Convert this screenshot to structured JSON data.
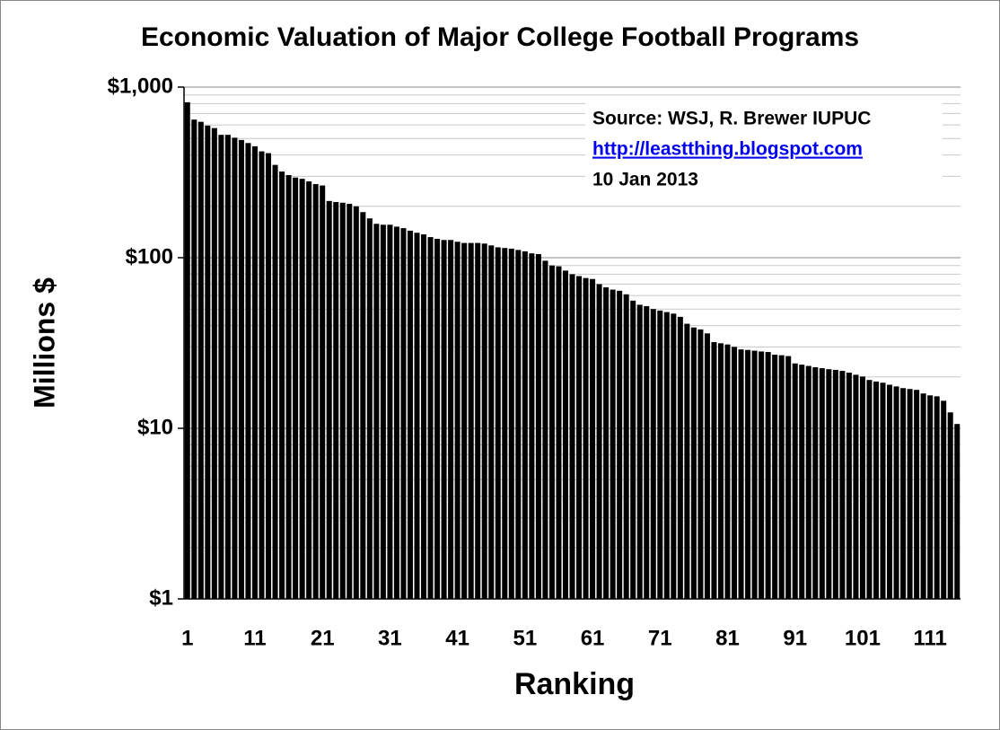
{
  "chart_data": {
    "type": "bar",
    "title": "Economic Valuation of Major College Football Programs",
    "xlabel": "Ranking",
    "ylabel": "Millions $",
    "annotations": [
      "Source: WSJ, R. Brewer IUPUC",
      "http://leastthing.blogspot.com",
      "10 Jan 2013"
    ],
    "categories": [
      1,
      null,
      null,
      null,
      null,
      null,
      null,
      null,
      null,
      null,
      11,
      null,
      null,
      null,
      null,
      null,
      null,
      null,
      null,
      null,
      21,
      null,
      null,
      null,
      null,
      null,
      null,
      null,
      null,
      null,
      31,
      null,
      null,
      null,
      null,
      null,
      null,
      null,
      null,
      null,
      41,
      null,
      null,
      null,
      null,
      null,
      null,
      null,
      null,
      null,
      51,
      null,
      null,
      null,
      null,
      null,
      null,
      null,
      null,
      null,
      61,
      null,
      null,
      null,
      null,
      null,
      null,
      null,
      null,
      null,
      71,
      null,
      null,
      null,
      null,
      null,
      null,
      null,
      null,
      null,
      81,
      null,
      null,
      null,
      null,
      null,
      null,
      null,
      null,
      null,
      91,
      null,
      null,
      null,
      null,
      null,
      null,
      null,
      null,
      null,
      101,
      null,
      null,
      null,
      null,
      null,
      null,
      null,
      null,
      null,
      111,
      null,
      null,
      null,
      null
    ],
    "values": [
      815,
      645,
      626,
      595,
      575,
      525,
      525,
      505,
      490,
      470,
      450,
      420,
      410,
      350,
      320,
      305,
      295,
      290,
      280,
      270,
      265,
      215,
      212,
      210,
      207,
      200,
      185,
      170,
      158,
      156,
      156,
      152,
      149,
      144,
      140,
      137,
      132,
      129,
      127,
      127,
      124,
      122,
      122,
      122,
      121,
      118,
      115,
      114,
      113,
      111,
      109,
      106,
      105,
      96,
      90,
      89,
      84,
      80,
      78,
      76,
      75,
      70,
      67,
      65,
      64,
      61,
      56,
      53,
      52,
      50,
      49,
      48,
      47,
      45,
      41,
      39,
      38,
      36,
      32,
      31.5,
      31,
      30,
      29,
      28.8,
      28.5,
      28.2,
      28,
      27,
      26.8,
      26.5,
      24,
      23.6,
      23.2,
      22.8,
      22.5,
      22.2,
      22,
      21.7,
      21.2,
      20.6,
      20.1,
      19.2,
      18.8,
      18.5,
      18,
      17.6,
      17.2,
      17,
      16.8,
      16,
      15.6,
      15.4,
      14.5,
      12.4,
      10.6
    ],
    "color": "#000000",
    "ylog": true,
    "ylim": [
      1,
      1000
    ],
    "yticks": [
      {
        "value": 1,
        "label": "$1"
      },
      {
        "value": 10,
        "label": "$10"
      },
      {
        "value": 100,
        "label": "$100"
      },
      {
        "value": 1000,
        "label": "$1,000"
      }
    ],
    "yticks_minor": [
      2,
      3,
      4,
      5,
      6,
      7,
      8,
      9,
      20,
      30,
      40,
      50,
      60,
      70,
      80,
      90,
      200,
      300,
      400,
      500,
      600,
      700,
      800,
      900
    ],
    "grid": true
  }
}
